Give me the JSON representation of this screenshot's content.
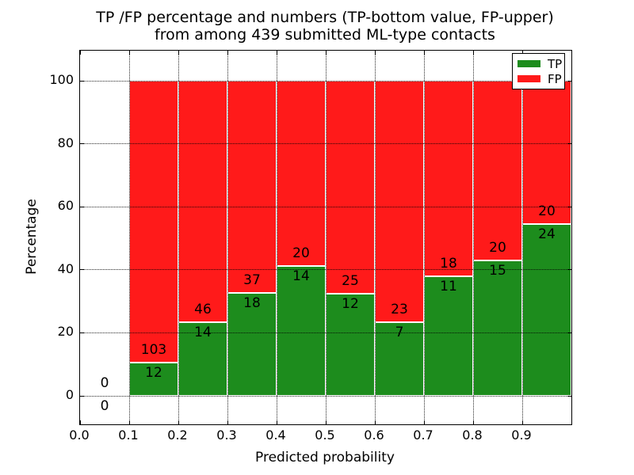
{
  "chart_data": {
    "type": "bar",
    "subtype": "stacked-percentage",
    "title_line1": "TP /FP percentage and numbers (TP-bottom value, FP-upper)",
    "title_line2": "from among 439 submitted ML-type contacts",
    "xlabel": "Predicted probability",
    "ylabel": "Percentage",
    "xlim": [
      0.0,
      1.0
    ],
    "ylim": [
      -9,
      110
    ],
    "grid": "dotted",
    "legend_position": "upper-right",
    "xticks": {
      "values": [
        0.0,
        0.1,
        0.2,
        0.3,
        0.4,
        0.5,
        0.6,
        0.7,
        0.8,
        0.9
      ],
      "labels": [
        "0.0",
        "0.1",
        "0.2",
        "0.3",
        "0.4",
        "0.5",
        "0.6",
        "0.7",
        "0.8",
        "0.9"
      ]
    },
    "yticks": {
      "values": [
        0,
        20,
        40,
        60,
        80,
        100
      ],
      "labels": [
        "0",
        "20",
        "40",
        "60",
        "80",
        "100"
      ]
    },
    "legend": [
      {
        "label": "TP"
      },
      {
        "label": "FP"
      }
    ],
    "colors": {
      "tp": "#1d8c1d",
      "fp": "#ff1a1a",
      "bar_edge": "#ffffff",
      "text": "#000000"
    },
    "bins": [
      {
        "x0": 0.0,
        "x1": 0.1,
        "tp": 0,
        "fp": 0
      },
      {
        "x0": 0.1,
        "x1": 0.2,
        "tp": 12,
        "fp": 103
      },
      {
        "x0": 0.2,
        "x1": 0.3,
        "tp": 14,
        "fp": 46
      },
      {
        "x0": 0.3,
        "x1": 0.4,
        "tp": 18,
        "fp": 37
      },
      {
        "x0": 0.4,
        "x1": 0.5,
        "tp": 14,
        "fp": 20
      },
      {
        "x0": 0.5,
        "x1": 0.6,
        "tp": 12,
        "fp": 25
      },
      {
        "x0": 0.6,
        "x1": 0.7,
        "tp": 7,
        "fp": 23
      },
      {
        "x0": 0.7,
        "x1": 0.8,
        "tp": 11,
        "fp": 18
      },
      {
        "x0": 0.8,
        "x1": 0.9,
        "tp": 15,
        "fp": 20
      },
      {
        "x0": 0.9,
        "x1": 1.0,
        "tp": 24,
        "fp": 20
      }
    ]
  }
}
